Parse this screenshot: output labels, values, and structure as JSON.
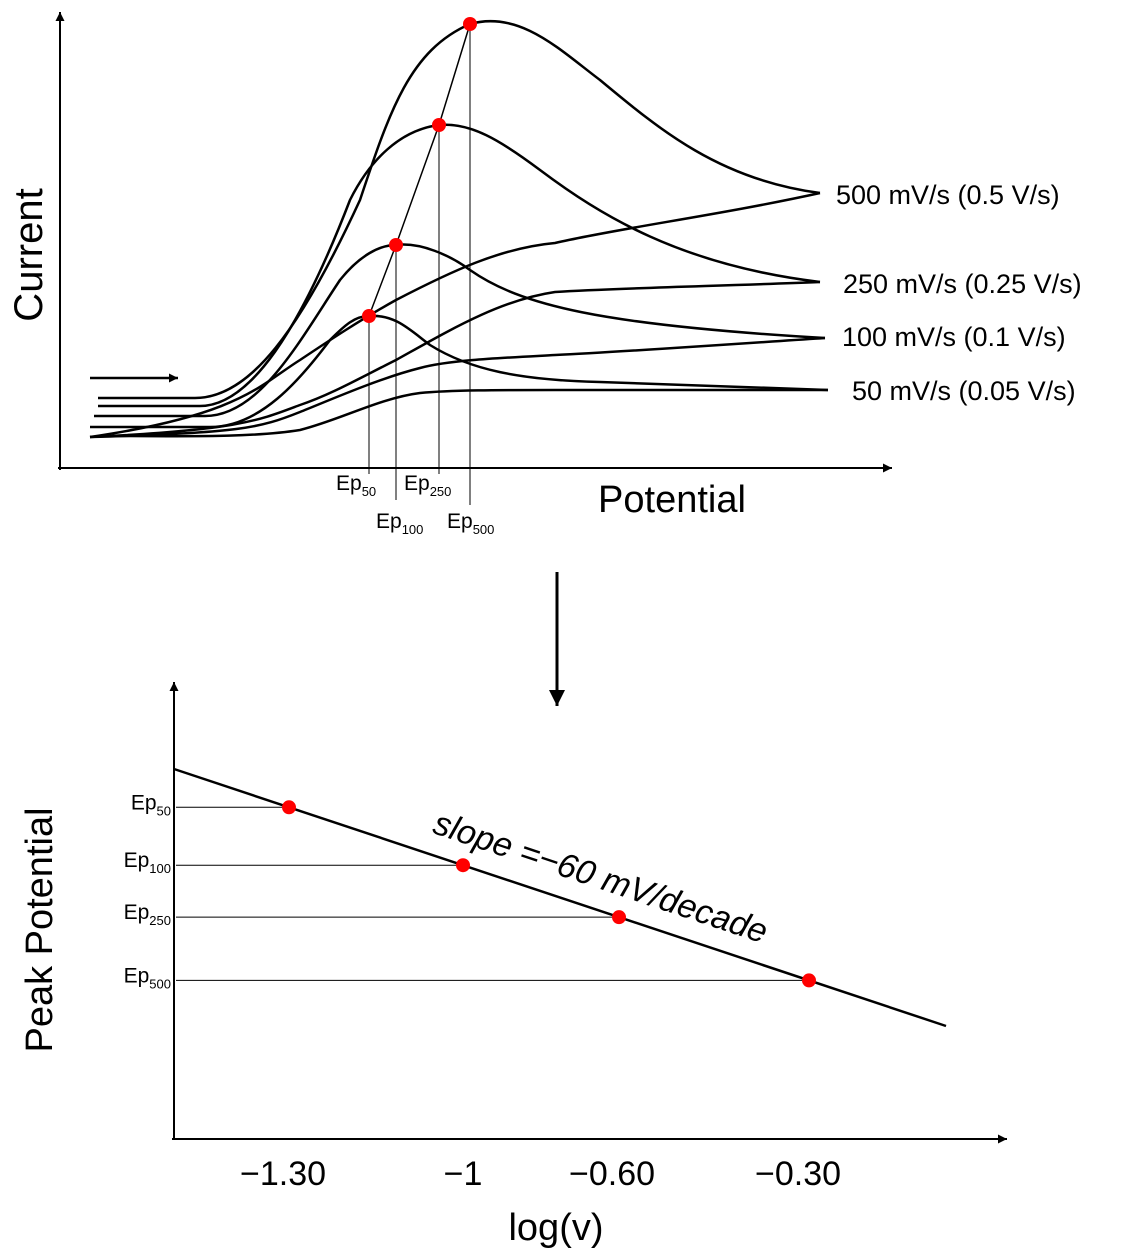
{
  "chart_data": [
    {
      "type": "line",
      "xlabel": "Potential",
      "ylabel": "Current",
      "series": [
        {
          "name": "500 mV/s (0.5 V/s)",
          "scan_rate_mV_s": 500,
          "peak_label": "500"
        },
        {
          "name": "250 mV/s (0.25 V/s)",
          "scan_rate_mV_s": 250,
          "peak_label": "250"
        },
        {
          "name": "100 mV/s (0.1 V/s)",
          "scan_rate_mV_s": 100,
          "peak_label": "100"
        },
        {
          "name": "50 mV/s (0.05 V/s)",
          "scan_rate_mV_s": 50,
          "peak_label": "50"
        }
      ],
      "peak_symbol_main": "E",
      "peak_symbol_p": "p",
      "peak_marker_color": "#ff0000"
    },
    {
      "type": "scatter",
      "xlabel": "log(v)",
      "ylabel": "Peak Potential",
      "xticks": [
        "−1.30",
        "−1",
        "−0.60",
        "−0.30"
      ],
      "points": [
        {
          "x": -1.3,
          "label": "50"
        },
        {
          "x": -1.0,
          "label": "100"
        },
        {
          "x": -0.6,
          "label": "250"
        },
        {
          "x": -0.3,
          "label": "500"
        }
      ],
      "annotation": "slope =−60 mV/decade",
      "marker_color": "#ff0000"
    }
  ]
}
